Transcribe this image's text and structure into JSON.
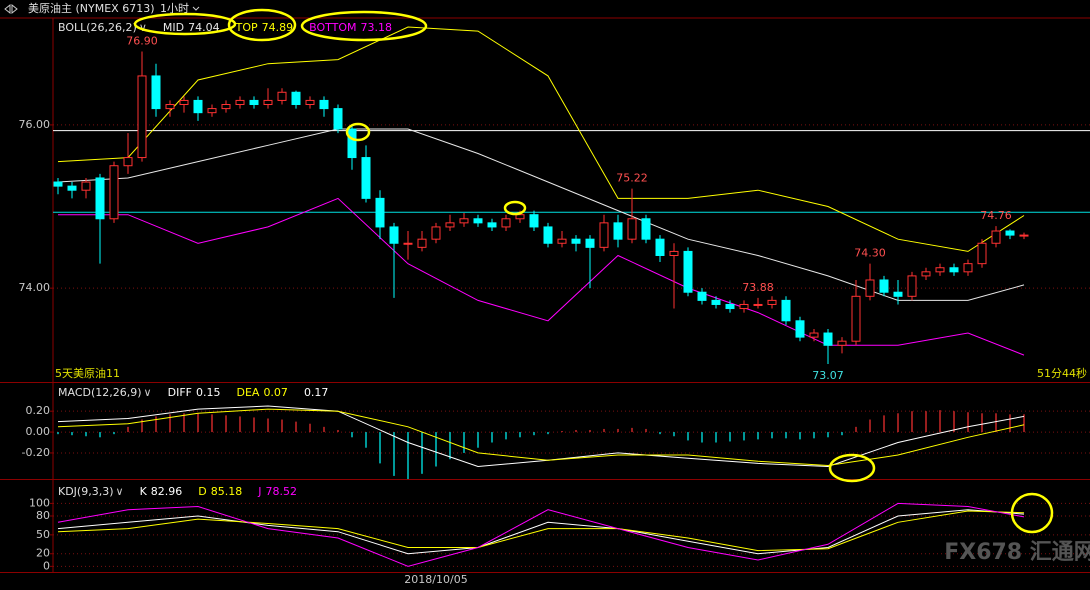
{
  "watermark": "FX678 汇通网",
  "chart_data": [
    {
      "type": "candlestick",
      "title": "美原油主 (NYMEX 6713)",
      "period": "1小时",
      "indicator": "BOLL(26,26,2)",
      "categories": [
        null,
        null,
        null,
        null,
        null,
        null,
        null,
        null,
        null,
        null,
        null,
        null,
        null,
        null,
        null,
        null,
        null,
        null,
        null,
        null,
        null,
        null,
        null,
        null,
        null,
        null,
        null,
        "2018/10/05",
        null,
        null,
        null,
        null,
        null,
        null,
        null,
        null,
        null,
        null,
        null,
        null,
        null,
        null,
        null,
        null,
        null,
        null,
        null,
        null,
        null,
        null,
        null,
        null,
        null,
        null,
        null,
        null,
        null,
        null,
        null,
        null,
        null,
        null,
        null,
        null,
        null,
        null,
        null,
        null,
        null,
        null
      ],
      "open": [
        75.3,
        75.25,
        75.2,
        75.35,
        74.85,
        75.5,
        75.6,
        76.6,
        76.2,
        76.25,
        76.3,
        76.15,
        76.2,
        76.25,
        76.3,
        76.25,
        76.3,
        76.4,
        76.25,
        76.3,
        76.2,
        75.95,
        75.6,
        75.1,
        74.75,
        74.55,
        74.5,
        74.6,
        74.75,
        74.8,
        74.85,
        74.8,
        74.75,
        74.85,
        74.9,
        74.75,
        74.55,
        74.6,
        74.6,
        74.5,
        74.8,
        74.6,
        74.85,
        74.6,
        74.4,
        74.45,
        73.95,
        73.85,
        73.8,
        73.75,
        73.8,
        73.8,
        73.85,
        73.6,
        73.4,
        73.45,
        73.3,
        73.35,
        73.9,
        74.1,
        73.95,
        73.9,
        74.15,
        74.2,
        74.25,
        74.2,
        74.3,
        74.55,
        74.7,
        74.65
      ],
      "high": [
        75.35,
        75.3,
        75.35,
        75.4,
        75.55,
        75.9,
        76.9,
        76.75,
        76.3,
        76.35,
        76.35,
        76.25,
        76.3,
        76.35,
        76.35,
        76.45,
        76.45,
        76.42,
        76.35,
        76.35,
        76.25,
        76.0,
        75.75,
        75.2,
        74.8,
        74.7,
        74.7,
        74.8,
        74.9,
        74.92,
        74.9,
        74.85,
        74.9,
        74.95,
        74.95,
        74.8,
        74.7,
        74.65,
        74.65,
        74.9,
        74.9,
        75.22,
        74.9,
        74.65,
        74.55,
        74.5,
        74.0,
        73.9,
        73.85,
        73.85,
        73.88,
        73.9,
        73.9,
        73.65,
        73.5,
        73.5,
        73.4,
        74.1,
        74.3,
        74.15,
        74.1,
        74.2,
        74.25,
        74.3,
        74.3,
        74.35,
        74.6,
        74.76,
        74.72,
        74.68
      ],
      "low": [
        75.15,
        75.1,
        75.1,
        74.3,
        74.8,
        75.4,
        75.55,
        76.1,
        76.1,
        76.15,
        76.05,
        76.1,
        76.15,
        76.2,
        76.2,
        76.2,
        76.25,
        76.2,
        76.2,
        76.1,
        75.9,
        75.45,
        75.05,
        74.6,
        73.88,
        74.35,
        74.45,
        74.55,
        74.7,
        74.75,
        74.75,
        74.7,
        74.7,
        74.8,
        74.7,
        74.5,
        74.5,
        74.45,
        74.0,
        74.45,
        74.5,
        74.55,
        74.55,
        74.32,
        73.75,
        73.9,
        73.8,
        73.75,
        73.7,
        73.7,
        73.75,
        73.75,
        73.55,
        73.35,
        73.35,
        73.07,
        73.2,
        73.3,
        73.85,
        73.9,
        73.8,
        73.85,
        74.1,
        74.15,
        74.15,
        74.15,
        74.25,
        74.5,
        74.6,
        74.6
      ],
      "close": [
        75.25,
        75.2,
        75.3,
        74.85,
        75.5,
        75.6,
        76.6,
        76.2,
        76.25,
        76.3,
        76.15,
        76.2,
        76.25,
        76.3,
        76.25,
        76.3,
        76.4,
        76.25,
        76.3,
        76.2,
        75.95,
        75.6,
        75.1,
        74.75,
        74.55,
        74.55,
        74.6,
        74.75,
        74.8,
        74.85,
        74.8,
        74.75,
        74.85,
        74.9,
        74.75,
        74.55,
        74.6,
        74.55,
        74.5,
        74.8,
        74.6,
        74.85,
        74.6,
        74.4,
        74.45,
        73.95,
        73.85,
        73.8,
        73.75,
        73.8,
        73.8,
        73.85,
        73.6,
        73.4,
        73.45,
        73.3,
        73.35,
        73.9,
        74.1,
        73.95,
        73.9,
        74.15,
        74.2,
        74.25,
        74.2,
        74.3,
        74.55,
        74.7,
        74.65,
        74.65
      ],
      "up_color": "#ff3232",
      "down_color": "#00ffff",
      "ylim": [
        72.85,
        77.31
      ],
      "yticks": [
        {
          "value": 76,
          "label": "76.00"
        },
        {
          "value": 74,
          "label": "74.00"
        }
      ],
      "grid": true,
      "series": [
        {
          "name": "MID",
          "color": "#e8e8e8",
          "x": [
            0,
            5,
            10,
            15,
            20,
            25,
            30,
            35,
            40,
            45,
            50,
            55,
            60,
            65,
            69
          ],
          "values": [
            75.3,
            75.35,
            75.55,
            75.75,
            75.95,
            75.95,
            75.65,
            75.3,
            74.95,
            74.6,
            74.4,
            74.15,
            73.85,
            73.85,
            74.04
          ]
        },
        {
          "name": "TOP",
          "color": "#ffff00",
          "x": [
            0,
            5,
            10,
            15,
            20,
            25,
            30,
            35,
            40,
            45,
            50,
            55,
            60,
            65,
            69
          ],
          "values": [
            75.55,
            75.6,
            76.55,
            76.75,
            76.8,
            77.2,
            77.15,
            76.6,
            75.1,
            75.1,
            75.2,
            75.0,
            74.6,
            74.45,
            74.89
          ]
        },
        {
          "name": "BOTTOM",
          "color": "#ff00ff",
          "x": [
            0,
            5,
            10,
            15,
            20,
            25,
            30,
            35,
            40,
            45,
            50,
            55,
            60,
            65,
            69
          ],
          "values": [
            74.9,
            74.9,
            74.55,
            74.75,
            75.1,
            74.3,
            73.85,
            73.6,
            74.4,
            74.0,
            73.7,
            73.3,
            73.3,
            73.45,
            73.18
          ]
        }
      ],
      "annotations": [
        {
          "value": 76.9,
          "label": "76.90"
        },
        {
          "value": 74.3,
          "label": "74.30"
        },
        {
          "value": 73.88,
          "label": "73.88"
        },
        {
          "value": 75.22,
          "label": "75.22"
        },
        {
          "value": 73.07,
          "label": "73.07"
        },
        {
          "value": 74.76,
          "label": "74.76"
        }
      ],
      "hlines": [
        {
          "value": 75.93,
          "color": "#ffffff"
        },
        {
          "value": 74.93,
          "color": "#00e0e0"
        }
      ],
      "footer_left": "5天美原油11",
      "footer_right": "51分44秒"
    },
    {
      "type": "macd",
      "title": "MACD(12,26,9)",
      "ylim": [
        -0.44,
        0.47
      ],
      "yticks": [
        {
          "value": 0.2,
          "label": "0.20"
        },
        {
          "value": 0,
          "label": "0.00"
        },
        {
          "value": -0.2,
          "label": "-0.20"
        }
      ],
      "grid": true,
      "histogram": {
        "up_color": "#ff3232",
        "down_color": "#00ffff",
        "values": [
          -0.02,
          -0.03,
          -0.04,
          -0.05,
          -0.02,
          0.05,
          0.12,
          0.15,
          0.17,
          0.18,
          0.18,
          0.17,
          0.16,
          0.15,
          0.14,
          0.13,
          0.12,
          0.1,
          0.08,
          0.05,
          0.02,
          -0.05,
          -0.15,
          -0.3,
          -0.42,
          -0.45,
          -0.4,
          -0.33,
          -0.26,
          -0.2,
          -0.15,
          -0.1,
          -0.07,
          -0.05,
          -0.03,
          -0.02,
          0.01,
          0.02,
          0.02,
          0.03,
          0.03,
          0.04,
          0.03,
          -0.02,
          -0.04,
          -0.08,
          -0.1,
          -0.1,
          -0.09,
          -0.08,
          -0.07,
          -0.06,
          -0.06,
          -0.07,
          -0.06,
          -0.05,
          -0.03,
          0.05,
          0.12,
          0.16,
          0.18,
          0.2,
          0.2,
          0.21,
          0.2,
          0.19,
          0.18,
          0.18,
          0.17,
          0.17
        ]
      },
      "series": [
        {
          "name": "DIFF",
          "color": "#ffffff",
          "x": [
            0,
            5,
            10,
            15,
            20,
            25,
            30,
            35,
            40,
            45,
            50,
            55,
            60,
            65,
            69
          ],
          "values": [
            0.1,
            0.13,
            0.22,
            0.25,
            0.2,
            -0.1,
            -0.33,
            -0.27,
            -0.2,
            -0.25,
            -0.3,
            -0.33,
            -0.1,
            0.05,
            0.15
          ]
        },
        {
          "name": "DEA",
          "color": "#ffff00",
          "x": [
            0,
            5,
            10,
            15,
            20,
            25,
            30,
            35,
            40,
            45,
            50,
            55,
            60,
            65,
            69
          ],
          "values": [
            0.05,
            0.08,
            0.18,
            0.22,
            0.2,
            0.05,
            -0.2,
            -0.27,
            -0.22,
            -0.22,
            -0.28,
            -0.32,
            -0.22,
            -0.05,
            0.07
          ]
        }
      ]
    },
    {
      "type": "line",
      "title": "KDJ(9,3,3)",
      "ylim": [
        -9,
        134
      ],
      "yticks": [
        100,
        80,
        50,
        20,
        0
      ],
      "grid": true,
      "series": [
        {
          "name": "K",
          "color": "#ffffff",
          "x": [
            0,
            5,
            10,
            15,
            20,
            25,
            30,
            35,
            40,
            45,
            50,
            55,
            60,
            65,
            69
          ],
          "values": [
            60,
            70,
            80,
            65,
            55,
            20,
            30,
            70,
            60,
            40,
            20,
            30,
            80,
            90,
            82.96
          ]
        },
        {
          "name": "D",
          "color": "#ffff00",
          "x": [
            0,
            5,
            10,
            15,
            20,
            25,
            30,
            35,
            40,
            45,
            50,
            55,
            60,
            65,
            69
          ],
          "values": [
            55,
            60,
            75,
            68,
            60,
            30,
            30,
            60,
            60,
            45,
            25,
            28,
            70,
            88,
            85.18
          ]
        },
        {
          "name": "J",
          "color": "#ff00ff",
          "x": [
            0,
            5,
            10,
            15,
            20,
            25,
            30,
            35,
            40,
            45,
            50,
            55,
            60,
            65,
            69
          ],
          "values": [
            70,
            90,
            95,
            60,
            45,
            0,
            30,
            90,
            60,
            30,
            10,
            35,
            100,
            95,
            78.52
          ]
        }
      ]
    }
  ]
}
